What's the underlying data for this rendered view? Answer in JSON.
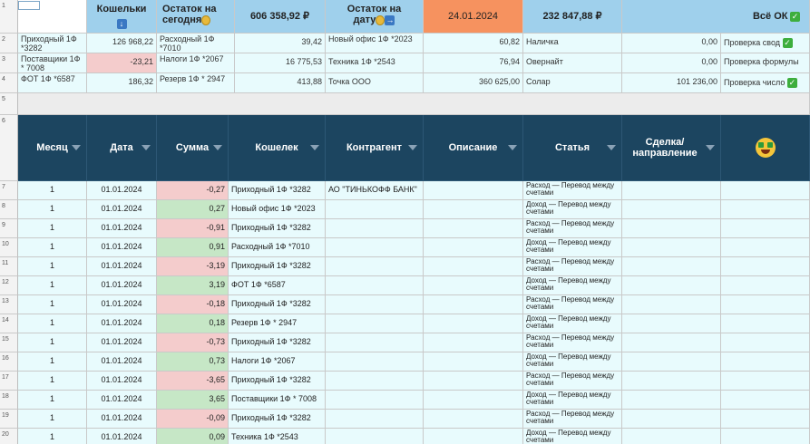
{
  "row_numbers": [
    "1",
    "2",
    "3",
    "4",
    "5",
    "6",
    "7",
    "8",
    "9",
    "10",
    "11",
    "12",
    "13",
    "14",
    "15",
    "16",
    "17",
    "18",
    "19",
    "20"
  ],
  "header": {
    "wallets_label": "Кошельки",
    "balance_today_label_1": "Остаток на",
    "balance_today_label_2": "сегодня",
    "balance_today_value": "606 358,92 ₽",
    "balance_date_label_1": "Остаток  на",
    "balance_date_label_2": "дату",
    "date_value": "24.01.2024",
    "balance_date_value": "232 847,88 ₽",
    "status_label": "Всё ОК"
  },
  "summary_rows": [
    {
      "w1": "Приходный 1Ф *3282",
      "v1": "126 968,22",
      "w2": "Расходный 1Ф *7010",
      "v2": "39,42",
      "w3": "Новый офис 1Ф *2023",
      "v3": "60,82",
      "w4": "Наличка",
      "v4": "0,00",
      "check": "Проверка свод"
    },
    {
      "w1": "Поставщики 1Ф * 7008",
      "v1": "-23,21",
      "w2": "Налоги 1Ф *2067",
      "v2": "16 775,53",
      "w3": "Техника 1Ф *2543",
      "v3": "76,94",
      "w4": "Овернайт",
      "v4": "0,00",
      "check": "Проверка формулы"
    },
    {
      "w1": "ФОТ 1Ф *6587",
      "v1": "186,32",
      "w2": "Резерв 1Ф * 2947",
      "v2": "413,88",
      "w3": "Точка ООО",
      "v3": "360 625,00",
      "w4": "Солар",
      "v4": "101 236,00",
      "check": "Проверка число"
    }
  ],
  "columns": [
    "Месяц",
    "Дата",
    "Сумма",
    "Кошелек",
    "Контрагент",
    "Описание",
    "Статья",
    "Сделка/ направление"
  ],
  "table_rows": [
    {
      "month": "1",
      "date": "01.01.2024",
      "amount": "-0,27",
      "sign": "neg",
      "wallet": "Приходный 1Ф *3282",
      "counterparty": "АО \"ТИНЬКОФФ БАНК\"",
      "article": "Расход — Перевод между счетами"
    },
    {
      "month": "1",
      "date": "01.01.2024",
      "amount": "0,27",
      "sign": "pos",
      "wallet": "Новый офис 1Ф *2023",
      "counterparty": "",
      "article": "Доход — Перевод между счетами"
    },
    {
      "month": "1",
      "date": "01.01.2024",
      "amount": "-0,91",
      "sign": "neg",
      "wallet": "Приходный 1Ф *3282",
      "counterparty": "",
      "article": "Расход — Перевод между счетами"
    },
    {
      "month": "1",
      "date": "01.01.2024",
      "amount": "0,91",
      "sign": "pos",
      "wallet": "Расходный 1Ф *7010",
      "counterparty": "",
      "article": "Доход — Перевод между счетами"
    },
    {
      "month": "1",
      "date": "01.01.2024",
      "amount": "-3,19",
      "sign": "neg",
      "wallet": "Приходный 1Ф *3282",
      "counterparty": "",
      "article": "Расход — Перевод между счетами"
    },
    {
      "month": "1",
      "date": "01.01.2024",
      "amount": "3,19",
      "sign": "pos",
      "wallet": "ФОТ 1Ф *6587",
      "counterparty": "",
      "article": "Доход — Перевод между счетами"
    },
    {
      "month": "1",
      "date": "01.01.2024",
      "amount": "-0,18",
      "sign": "neg",
      "wallet": "Приходный 1Ф *3282",
      "counterparty": "",
      "article": "Расход — Перевод между счетами"
    },
    {
      "month": "1",
      "date": "01.01.2024",
      "amount": "0,18",
      "sign": "pos",
      "wallet": "Резерв 1Ф * 2947",
      "counterparty": "",
      "article": "Доход — Перевод между счетами"
    },
    {
      "month": "1",
      "date": "01.01.2024",
      "amount": "-0,73",
      "sign": "neg",
      "wallet": "Приходный 1Ф *3282",
      "counterparty": "",
      "article": "Расход — Перевод между счетами"
    },
    {
      "month": "1",
      "date": "01.01.2024",
      "amount": "0,73",
      "sign": "pos",
      "wallet": "Налоги 1Ф *2067",
      "counterparty": "",
      "article": "Доход — Перевод между счетами"
    },
    {
      "month": "1",
      "date": "01.01.2024",
      "amount": "-3,65",
      "sign": "neg",
      "wallet": "Приходный 1Ф *3282",
      "counterparty": "",
      "article": "Расход — Перевод между счетами"
    },
    {
      "month": "1",
      "date": "01.01.2024",
      "amount": "3,65",
      "sign": "pos",
      "wallet": "Поставщики 1Ф * 7008",
      "counterparty": "",
      "article": "Доход — Перевод между счетами"
    },
    {
      "month": "1",
      "date": "01.01.2024",
      "amount": "-0,09",
      "sign": "neg",
      "wallet": "Приходный 1Ф *3282",
      "counterparty": "",
      "article": "Расход — Перевод между счетами"
    },
    {
      "month": "1",
      "date": "01.01.2024",
      "amount": "0,09",
      "sign": "pos",
      "wallet": "Техника 1Ф *2543",
      "counterparty": "",
      "article": "Доход — Перевод между счетами"
    }
  ],
  "colors": {
    "header_navy": "#1c4560",
    "neg_amount": "#f4cccc",
    "pos_amount": "#c6e7c6",
    "date_highlight": "#f6925f",
    "wallet_blue": "#9fd0ec"
  }
}
